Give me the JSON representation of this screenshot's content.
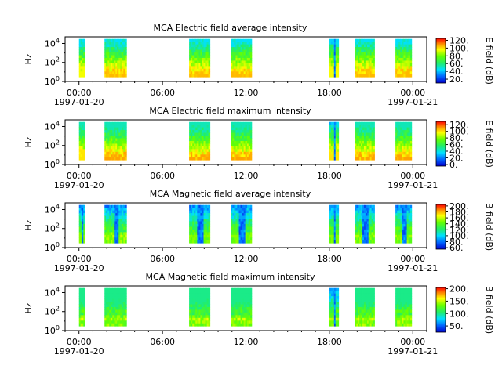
{
  "chart_data": [
    {
      "type": "heatmap",
      "title": "MCA  Electric field average intensity",
      "ylabel": "Hz",
      "yscale": "log",
      "ylim": [
        1,
        50000
      ],
      "yticks": [
        "10^0",
        "10^2",
        "10^4"
      ],
      "xlim": [
        "1997-01-19T23:00",
        "1997-01-21T01:00"
      ],
      "xticks": [
        "00:00",
        "06:00",
        "12:00",
        "18:00",
        "00:00"
      ],
      "xtick_dates": [
        "1997-01-20",
        "1997-01-21"
      ],
      "colorbar": {
        "label": "E field (dB)",
        "min": 10,
        "max": 125,
        "ticks": [
          20,
          40,
          60,
          80,
          100,
          120
        ]
      },
      "segments": [
        {
          "start": "1997-01-20T00:00",
          "end": "1997-01-20T00:25",
          "min_db": 45,
          "max_db": 95
        },
        {
          "start": "1997-01-20T01:50",
          "end": "1997-01-20T03:25",
          "min_db": 45,
          "max_db": 105
        },
        {
          "start": "1997-01-20T07:55",
          "end": "1997-01-20T09:25",
          "min_db": 45,
          "max_db": 105
        },
        {
          "start": "1997-01-20T10:55",
          "end": "1997-01-20T12:25",
          "min_db": 45,
          "max_db": 105
        },
        {
          "start": "1997-01-20T18:00",
          "end": "1997-01-20T18:40",
          "min_db": 15,
          "max_db": 95
        },
        {
          "start": "1997-01-20T19:50",
          "end": "1997-01-20T21:15",
          "min_db": 45,
          "max_db": 105
        },
        {
          "start": "1997-01-20T22:45",
          "end": "1997-01-20T23:55",
          "min_db": 45,
          "max_db": 105
        }
      ]
    },
    {
      "type": "heatmap",
      "title": "MCA  Electric field maximum intensity",
      "ylabel": "Hz",
      "yscale": "log",
      "ylim": [
        1,
        50000
      ],
      "yticks": [
        "10^0",
        "10^2",
        "10^4"
      ],
      "xlim": [
        "1997-01-19T23:00",
        "1997-01-21T01:00"
      ],
      "xticks": [
        "00:00",
        "06:00",
        "12:00",
        "18:00",
        "00:00"
      ],
      "xtick_dates": [
        "1997-01-20",
        "1997-01-21"
      ],
      "colorbar": {
        "label": "E field (dB)",
        "min": -5,
        "max": 130,
        "ticks": [
          0,
          20,
          40,
          60,
          80,
          100,
          120
        ]
      },
      "segments": [
        {
          "start": "1997-01-20T00:00",
          "end": "1997-01-20T00:25",
          "min_db": 45,
          "max_db": 100
        },
        {
          "start": "1997-01-20T01:50",
          "end": "1997-01-20T03:25",
          "min_db": 45,
          "max_db": 110
        },
        {
          "start": "1997-01-20T07:55",
          "end": "1997-01-20T09:25",
          "min_db": 45,
          "max_db": 110
        },
        {
          "start": "1997-01-20T10:55",
          "end": "1997-01-20T12:25",
          "min_db": 45,
          "max_db": 110
        },
        {
          "start": "1997-01-20T18:00",
          "end": "1997-01-20T18:40",
          "min_db": 10,
          "max_db": 100
        },
        {
          "start": "1997-01-20T19:50",
          "end": "1997-01-20T21:15",
          "min_db": 45,
          "max_db": 110
        },
        {
          "start": "1997-01-20T22:45",
          "end": "1997-01-20T23:55",
          "min_db": 45,
          "max_db": 110
        }
      ]
    },
    {
      "type": "heatmap",
      "title": "MCA  Magnetic field average intensity",
      "ylabel": "Hz",
      "yscale": "log",
      "ylim": [
        1,
        50000
      ],
      "yticks": [
        "10^0",
        "10^2",
        "10^4"
      ],
      "xlim": [
        "1997-01-19T23:00",
        "1997-01-21T01:00"
      ],
      "xticks": [
        "00:00",
        "06:00",
        "12:00",
        "18:00",
        "00:00"
      ],
      "xtick_dates": [
        "1997-01-20",
        "1997-01-21"
      ],
      "colorbar": {
        "label": "B field (dB)",
        "min": 55,
        "max": 205,
        "ticks": [
          60,
          80,
          100,
          120,
          140,
          160,
          180,
          200
        ]
      },
      "segments": [
        {
          "start": "1997-01-20T00:00",
          "end": "1997-01-20T00:25",
          "min_db": 60,
          "max_db": 150
        },
        {
          "start": "1997-01-20T01:50",
          "end": "1997-01-20T03:25",
          "min_db": 60,
          "max_db": 160
        },
        {
          "start": "1997-01-20T07:55",
          "end": "1997-01-20T09:25",
          "min_db": 60,
          "max_db": 150
        },
        {
          "start": "1997-01-20T10:55",
          "end": "1997-01-20T12:25",
          "min_db": 60,
          "max_db": 150
        },
        {
          "start": "1997-01-20T18:00",
          "end": "1997-01-20T18:40",
          "min_db": 60,
          "max_db": 150
        },
        {
          "start": "1997-01-20T19:50",
          "end": "1997-01-20T21:15",
          "min_db": 60,
          "max_db": 155
        },
        {
          "start": "1997-01-20T22:45",
          "end": "1997-01-20T23:55",
          "min_db": 60,
          "max_db": 155
        }
      ]
    },
    {
      "type": "heatmap",
      "title": "MCA  Magnetic field maximum intensity",
      "ylabel": "Hz",
      "yscale": "log",
      "ylim": [
        1,
        50000
      ],
      "yticks": [
        "10^0",
        "10^2",
        "10^4"
      ],
      "xlim": [
        "1997-01-19T23:00",
        "1997-01-21T01:00"
      ],
      "xticks": [
        "00:00",
        "06:00",
        "12:00",
        "18:00",
        "00:00"
      ],
      "xtick_dates": [
        "1997-01-20",
        "1997-01-21"
      ],
      "colorbar": {
        "label": "B field (dB)",
        "min": 25,
        "max": 205,
        "ticks": [
          50,
          100,
          150,
          200
        ]
      },
      "segments": [
        {
          "start": "1997-01-20T00:00",
          "end": "1997-01-20T00:25",
          "min_db": 100,
          "max_db": 165
        },
        {
          "start": "1997-01-20T01:50",
          "end": "1997-01-20T03:25",
          "min_db": 100,
          "max_db": 170
        },
        {
          "start": "1997-01-20T07:55",
          "end": "1997-01-20T09:25",
          "min_db": 100,
          "max_db": 165
        },
        {
          "start": "1997-01-20T10:55",
          "end": "1997-01-20T12:25",
          "min_db": 100,
          "max_db": 165
        },
        {
          "start": "1997-01-20T18:00",
          "end": "1997-01-20T18:40",
          "min_db": 40,
          "max_db": 165
        },
        {
          "start": "1997-01-20T19:50",
          "end": "1997-01-20T21:15",
          "min_db": 100,
          "max_db": 170
        },
        {
          "start": "1997-01-20T22:45",
          "end": "1997-01-20T23:55",
          "min_db": 100,
          "max_db": 170
        }
      ]
    }
  ]
}
